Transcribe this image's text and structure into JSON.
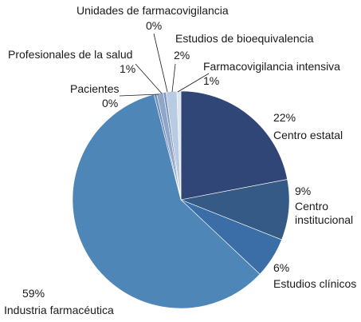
{
  "chart_data": {
    "type": "pie",
    "title": "",
    "slices": [
      {
        "name": "Centro estatal",
        "name_lines": [
          "Centro estatal"
        ],
        "pct_label": "22%",
        "value": 22,
        "color": "#2f4677"
      },
      {
        "name": "Centro institucional",
        "name_lines": [
          "Centro",
          "institucional"
        ],
        "pct_label": "9%",
        "value": 9,
        "color": "#345a85"
      },
      {
        "name": "Estudios clínicos",
        "name_lines": [
          "Estudios clínicos"
        ],
        "pct_label": "6%",
        "value": 6,
        "color": "#3b6ea6"
      },
      {
        "name": "Industria farmacéutica",
        "name_lines": [
          "Industria farmacéutica"
        ],
        "pct_label": "59%",
        "value": 59,
        "color": "#4f86b8"
      },
      {
        "name": "Pacientes",
        "name_lines": [
          "Pacientes"
        ],
        "pct_label": "0%",
        "value": 0.4,
        "color": "#6f8fb8"
      },
      {
        "name": "Profesionales de la salud",
        "name_lines": [
          "Profesionales de la salud"
        ],
        "pct_label": "1%",
        "value": 1,
        "color": "#8fa6c8"
      },
      {
        "name": "Unidades de farmacovigilancia",
        "name_lines": [
          "Unidades de farmacovigilancia"
        ],
        "pct_label": "0%",
        "value": 0.4,
        "color": "#7d97bd"
      },
      {
        "name": "Estudios de bioequivalencia",
        "name_lines": [
          "Estudios de bioequivalencia"
        ],
        "pct_label": "2%",
        "value": 1.6,
        "color": "#b9cbe3"
      },
      {
        "name": "Farmacovigilancia intensiva",
        "name_lines": [
          "Farmacovigilancia intensiva"
        ],
        "pct_label": "1%",
        "value": 0.6,
        "color": "#dbe6f2"
      }
    ]
  }
}
